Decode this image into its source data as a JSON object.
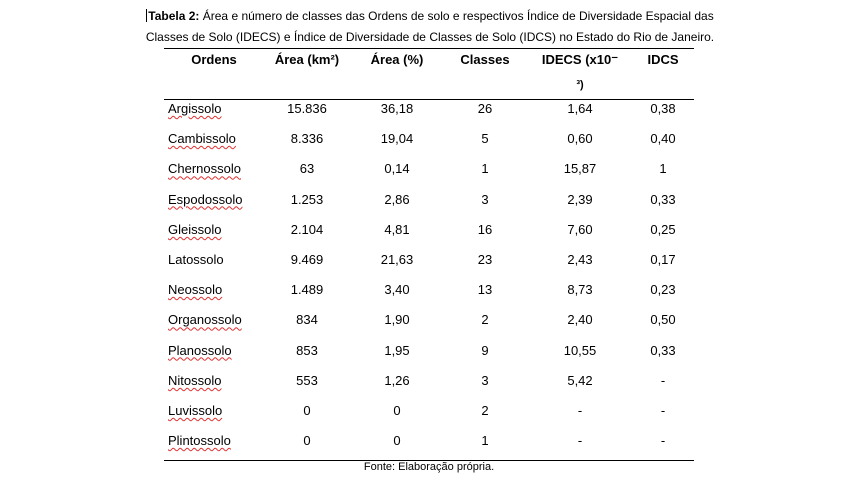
{
  "caption": {
    "label": "Tabela 2:",
    "line1": " Área e número de classes das Ordens de solo e respectivos Índice de Diversidade Espacial das",
    "line2": "Classes de Solo (IDECS) e Índice de Diversidade de Classes de Solo (IDCS) no Estado do Rio de Janeiro."
  },
  "table": {
    "headers": {
      "ordens": "Ordens",
      "area_km2": "Área (km²)",
      "area_pct": "Área (%)",
      "classes": "Classes",
      "idecs": "IDECS (x10⁻",
      "idecs_exp": "³)",
      "idcs": "IDCS"
    },
    "rows": [
      {
        "ordem": "Argissolo",
        "area_km2": "15.836",
        "area_pct": "36,18",
        "classes": "26",
        "idecs": "1,64",
        "idcs": "0,38"
      },
      {
        "ordem": "Cambissolo",
        "area_km2": "8.336",
        "area_pct": "19,04",
        "classes": "5",
        "idecs": "0,60",
        "idcs": "0,40"
      },
      {
        "ordem": "Chernossolo",
        "area_km2": "63",
        "area_pct": "0,14",
        "classes": "1",
        "idecs": "15,87",
        "idcs": "1"
      },
      {
        "ordem": "Espodossolo",
        "area_km2": "1.253",
        "area_pct": "2,86",
        "classes": "3",
        "idecs": "2,39",
        "idcs": "0,33"
      },
      {
        "ordem": "Gleissolo",
        "area_km2": "2.104",
        "area_pct": "4,81",
        "classes": "16",
        "idecs": "7,60",
        "idcs": "0,25"
      },
      {
        "ordem": "Latossolo",
        "area_km2": "9.469",
        "area_pct": "21,63",
        "classes": "23",
        "idecs": "2,43",
        "idcs": "0,17"
      },
      {
        "ordem": "Neossolo",
        "area_km2": "1.489",
        "area_pct": "3,40",
        "classes": "13",
        "idecs": "8,73",
        "idcs": "0,23"
      },
      {
        "ordem": "Organossolo",
        "area_km2": "834",
        "area_pct": "1,90",
        "classes": "2",
        "idecs": "2,40",
        "idcs": "0,50"
      },
      {
        "ordem": "Planossolo",
        "area_km2": "853",
        "area_pct": "1,95",
        "classes": "9",
        "idecs": "10,55",
        "idcs": "0,33"
      },
      {
        "ordem": "Nitossolo",
        "area_km2": "553",
        "area_pct": "1,26",
        "classes": "3",
        "idecs": "5,42",
        "idcs": "-"
      },
      {
        "ordem": "Luvissolo",
        "area_km2": "0",
        "area_pct": "0",
        "classes": "2",
        "idecs": "-",
        "idcs": "-"
      },
      {
        "ordem": "Plintossolo",
        "area_km2": "0",
        "area_pct": "0",
        "classes": "1",
        "idecs": "-",
        "idcs": "-"
      }
    ]
  },
  "source": "Fonte: Elaboração própria.",
  "colors": {
    "text": "#000000",
    "spellcheck_underline": "#e03030"
  }
}
